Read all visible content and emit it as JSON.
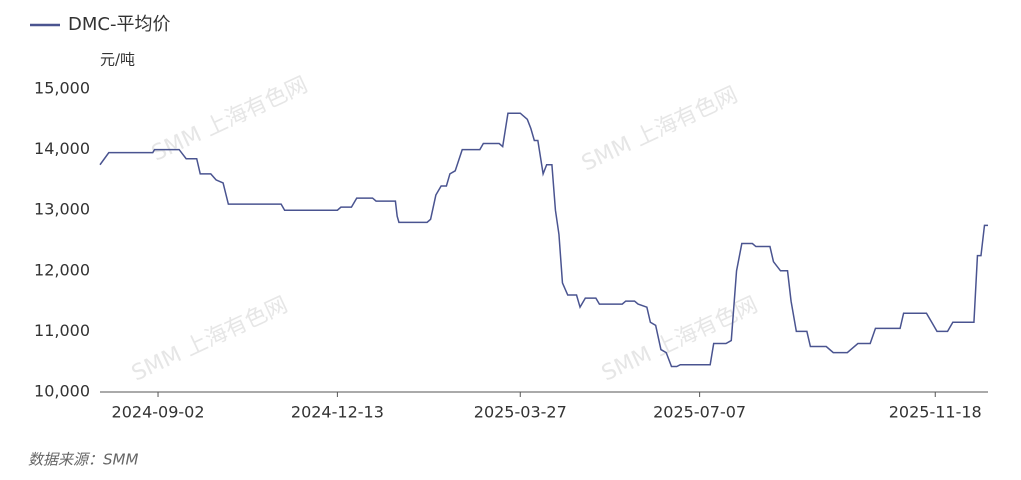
{
  "chart_data": {
    "type": "line",
    "legend_label": "DMC-平均价",
    "y_unit": "元/吨",
    "source": "数据来源：SMM",
    "watermark": "SMM 上海有色网",
    "x": [
      "2024-07-31",
      "2024-08-05",
      "2024-08-30",
      "2024-08-31",
      "2024-09-14",
      "2024-09-18",
      "2024-09-24",
      "2024-09-26",
      "2024-10-02",
      "2024-10-05",
      "2024-10-09",
      "2024-10-12",
      "2024-11-11",
      "2024-11-13",
      "2024-12-13",
      "2024-12-15",
      "2024-12-21",
      "2024-12-24",
      "2025-01-02",
      "2025-01-04",
      "2025-01-15",
      "2025-01-16",
      "2025-01-17",
      "2025-02-02",
      "2025-02-04",
      "2025-02-07",
      "2025-02-10",
      "2025-02-13",
      "2025-02-15",
      "2025-02-18",
      "2025-02-22",
      "2025-03-04",
      "2025-03-06",
      "2025-03-15",
      "2025-03-17",
      "2025-03-20",
      "2025-03-27",
      "2025-03-31",
      "2025-04-02",
      "2025-04-04",
      "2025-04-06",
      "2025-04-09",
      "2025-04-11",
      "2025-04-14",
      "2025-04-16",
      "2025-04-18",
      "2025-04-20",
      "2025-04-23",
      "2025-04-28",
      "2025-04-30",
      "2025-05-03",
      "2025-05-09",
      "2025-05-11",
      "2025-05-24",
      "2025-05-26",
      "2025-05-31",
      "2025-06-02",
      "2025-06-07",
      "2025-06-09",
      "2025-06-12",
      "2025-06-15",
      "2025-06-18",
      "2025-06-21",
      "2025-06-24",
      "2025-06-26",
      "2025-07-13",
      "2025-07-15",
      "2025-07-22",
      "2025-07-25",
      "2025-07-28",
      "2025-07-31",
      "2025-08-06",
      "2025-08-08",
      "2025-08-16",
      "2025-08-18",
      "2025-08-22",
      "2025-08-26",
      "2025-08-28",
      "2025-08-31",
      "2025-09-06",
      "2025-09-08",
      "2025-09-17",
      "2025-09-21",
      "2025-09-29",
      "2025-10-01",
      "2025-10-05",
      "2025-10-12",
      "2025-10-15",
      "2025-10-29",
      "2025-10-31",
      "2025-11-13",
      "2025-11-16",
      "2025-11-19",
      "2025-11-25",
      "2025-11-28",
      "2025-12-10",
      "2025-12-12",
      "2025-12-14",
      "2025-12-16",
      "2025-12-18"
    ],
    "series": [
      {
        "name": "DMC-平均价",
        "color": "#4a5490",
        "values": [
          13750,
          13950,
          13950,
          14000,
          14000,
          13850,
          13850,
          13600,
          13600,
          13500,
          13450,
          13100,
          13100,
          13000,
          13000,
          13050,
          13050,
          13200,
          13200,
          13150,
          13150,
          12900,
          12800,
          12800,
          12850,
          13250,
          13400,
          13400,
          13600,
          13650,
          14000,
          14000,
          14100,
          14100,
          14050,
          14600,
          14600,
          14500,
          14350,
          14150,
          14150,
          13600,
          13750,
          13750,
          13000,
          12600,
          11800,
          11600,
          11600,
          11400,
          11550,
          11550,
          11450,
          11450,
          11500,
          11500,
          11450,
          11400,
          11150,
          11100,
          10700,
          10650,
          10420,
          10420,
          10450,
          10450,
          10800,
          10800,
          10850,
          12000,
          12450,
          12450,
          12400,
          12400,
          12150,
          12000,
          12000,
          11500,
          11000,
          11000,
          10750,
          10750,
          10650,
          10650,
          10700,
          10800,
          10800,
          11050,
          11050,
          11300,
          11300,
          11150,
          11000,
          11000,
          11150,
          11150,
          12250,
          12250,
          12750,
          12750
        ]
      }
    ],
    "xlim": [
      "2024-07-31",
      "2025-12-18"
    ],
    "xticks": [
      "2024-09-02",
      "2024-12-13",
      "2025-03-27",
      "2025-07-07",
      "2025-11-18"
    ],
    "ylim": [
      10000,
      15000
    ],
    "yticks": [
      {
        "value": 10000,
        "label": "10,000"
      },
      {
        "value": 11000,
        "label": "11,000"
      },
      {
        "value": 12000,
        "label": "12,000"
      },
      {
        "value": 13000,
        "label": "13,000"
      },
      {
        "value": 14000,
        "label": "14,000"
      },
      {
        "value": 15000,
        "label": "15,000"
      }
    ],
    "grid": false
  }
}
